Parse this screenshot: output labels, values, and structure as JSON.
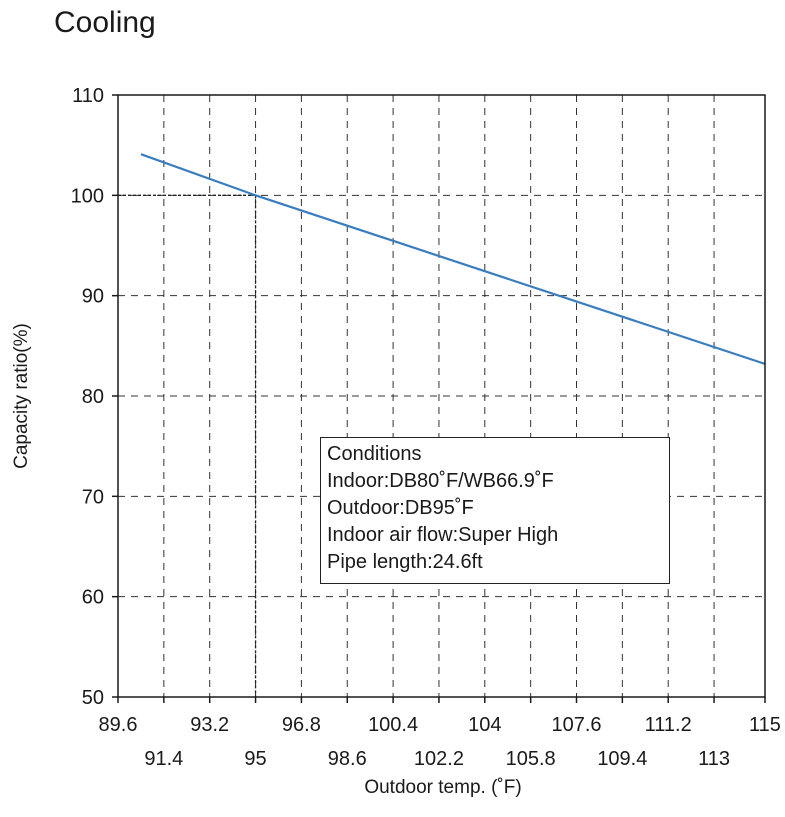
{
  "chart_data": {
    "type": "line",
    "title": "Cooling",
    "xlabel": "Outdoor temp. (˚F)",
    "ylabel": "Capacity ratio(%)",
    "xlim": [
      89.6,
      115
    ],
    "ylim": [
      50,
      110
    ],
    "grid": true,
    "x_ticks_top_row": [
      "89.6",
      "93.2",
      "96.8",
      "100.4",
      "104",
      "107.6",
      "111.2",
      "115"
    ],
    "x_ticks_bottom_row": [
      "91.4",
      "95",
      "98.6",
      "102.2",
      "105.8",
      "109.4",
      "113"
    ],
    "y_ticks": [
      "50",
      "60",
      "70",
      "80",
      "90",
      "100",
      "110"
    ],
    "series": [
      {
        "color": "#3a7dbf",
        "x": [
          90.5,
          95,
          115
        ],
        "y": [
          104.1,
          100,
          83.2
        ]
      }
    ],
    "reference_lines": [
      {
        "x": 95,
        "y": 100
      }
    ],
    "annotation": {
      "lines": [
        "Conditions",
        "Indoor:DB80˚F/WB66.9˚F",
        "Outdoor:DB95˚F",
        "Indoor air flow:Super High",
        "Pipe length:24.6ft"
      ]
    }
  }
}
